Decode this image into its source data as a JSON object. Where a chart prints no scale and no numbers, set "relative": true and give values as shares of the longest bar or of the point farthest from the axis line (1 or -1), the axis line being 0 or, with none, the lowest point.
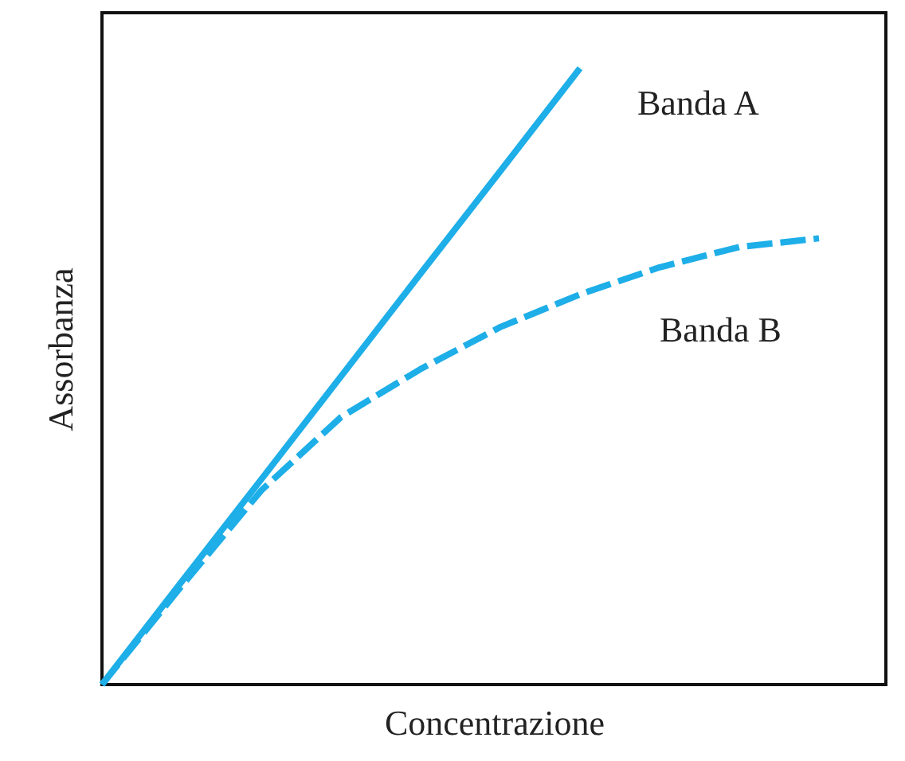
{
  "chart_data": {
    "type": "line",
    "relative": true,
    "xlabel": "Concentrazione",
    "ylabel": "Assorbanza",
    "grid": false,
    "marker": "none",
    "categories": [
      null,
      null,
      null,
      null,
      null,
      null,
      null,
      null,
      null,
      null
    ],
    "series": [
      {
        "name": "Banda A",
        "color": "#1eaee8",
        "line_style": "solid",
        "values": [
          0,
          0.167,
          0.333,
          0.5,
          0.667,
          0.833,
          1,
          null,
          null,
          null
        ]
      },
      {
        "name": "Banda B",
        "color": "#1eaee8",
        "line_style": "dashed",
        "values": [
          0,
          0.16,
          0.315,
          0.434,
          0.512,
          0.58,
          0.633,
          0.677,
          0.71,
          0.724
        ]
      }
    ]
  }
}
